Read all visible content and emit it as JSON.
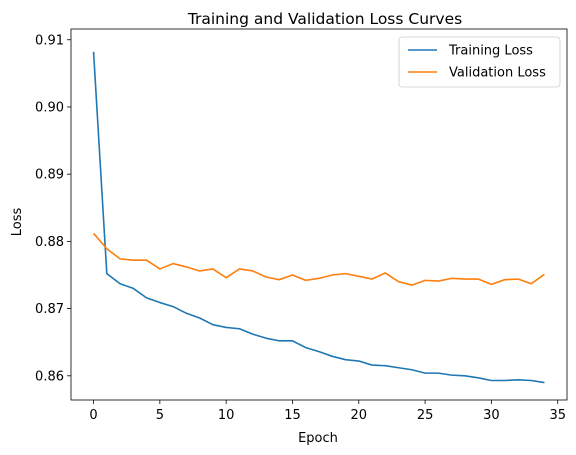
{
  "chart_data": {
    "type": "line",
    "title": "Training and Validation Loss Curves",
    "xlabel": "Epoch",
    "ylabel": "Loss",
    "xlim": [
      -1.7,
      35.7
    ],
    "ylim": [
      0.8564,
      0.9116
    ],
    "xticks": [
      0,
      5,
      10,
      15,
      20,
      25,
      30,
      35
    ],
    "yticks": [
      0.86,
      0.87,
      0.88,
      0.89,
      0.9,
      0.91
    ],
    "ytick_labels": [
      "0.86",
      "0.87",
      "0.88",
      "0.89",
      "0.90",
      "0.91"
    ],
    "grid": false,
    "legend_position": "top-right",
    "x": [
      0,
      1,
      2,
      3,
      4,
      5,
      6,
      7,
      8,
      9,
      10,
      11,
      12,
      13,
      14,
      15,
      16,
      17,
      18,
      19,
      20,
      21,
      22,
      23,
      24,
      25,
      26,
      27,
      28,
      29,
      30,
      31,
      32,
      33,
      34
    ],
    "series": [
      {
        "name": "Training Loss",
        "color": "#1f77b4",
        "values": [
          0.9082,
          0.8752,
          0.8737,
          0.873,
          0.8716,
          0.8709,
          0.8703,
          0.8693,
          0.8686,
          0.8676,
          0.8672,
          0.867,
          0.8662,
          0.8656,
          0.8652,
          0.8652,
          0.8642,
          0.8636,
          0.8629,
          0.8624,
          0.8622,
          0.8616,
          0.8615,
          0.8612,
          0.8609,
          0.8604,
          0.8604,
          0.8601,
          0.86,
          0.8597,
          0.8593,
          0.8593,
          0.8594,
          0.8593,
          0.859
        ]
      },
      {
        "name": "Validation Loss",
        "color": "#ff7f0e",
        "values": [
          0.8812,
          0.8789,
          0.8774,
          0.8772,
          0.8772,
          0.8759,
          0.8767,
          0.8762,
          0.8756,
          0.8759,
          0.8746,
          0.8759,
          0.8756,
          0.8747,
          0.8743,
          0.875,
          0.8742,
          0.8745,
          0.875,
          0.8752,
          0.8748,
          0.8744,
          0.8753,
          0.874,
          0.8735,
          0.8742,
          0.8741,
          0.8745,
          0.8744,
          0.8744,
          0.8736,
          0.8743,
          0.8744,
          0.8737,
          0.8751
        ]
      }
    ]
  }
}
